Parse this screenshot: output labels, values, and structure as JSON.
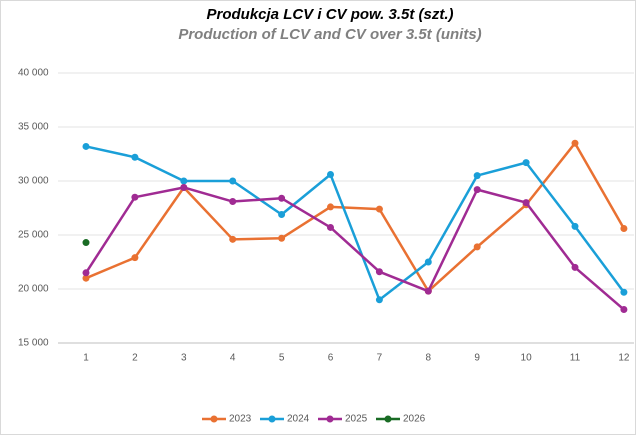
{
  "chart_data": {
    "type": "line",
    "title": "Produkcja LCV i CV pow. 3.5t (szt.)",
    "subtitle": "Production of LCV and CV over 3.5t (units)",
    "categories": [
      "1",
      "2",
      "3",
      "4",
      "5",
      "6",
      "7",
      "8",
      "9",
      "10",
      "11",
      "12"
    ],
    "series": [
      {
        "name": "2023",
        "color": "#e97132",
        "values": [
          21000,
          22900,
          29400,
          24600,
          24700,
          27600,
          27400,
          19800,
          23900,
          27800,
          33500,
          25600
        ]
      },
      {
        "name": "2024",
        "color": "#1a9fd8",
        "values": [
          33200,
          32200,
          30000,
          30000,
          26900,
          30600,
          19000,
          22500,
          30500,
          31700,
          25800,
          19700
        ]
      },
      {
        "name": "2025",
        "color": "#a02b93",
        "values": [
          21500,
          28500,
          29400,
          28100,
          28400,
          25700,
          21600,
          19800,
          29200,
          28000,
          22000,
          18100
        ]
      },
      {
        "name": "2026",
        "color": "#196b24",
        "values": [
          24300,
          null,
          null,
          null,
          null,
          null,
          null,
          null,
          null,
          null,
          null,
          null
        ]
      }
    ],
    "ylim": [
      15000,
      40000
    ],
    "yticks": [
      {
        "value": 15000,
        "label": "15 000"
      },
      {
        "value": 20000,
        "label": "20 000"
      },
      {
        "value": 25000,
        "label": "25 000"
      },
      {
        "value": 30000,
        "label": "30 000"
      },
      {
        "value": 35000,
        "label": "35 000"
      },
      {
        "value": 40000,
        "label": "40 000"
      }
    ],
    "grid": true,
    "legend": "bottom"
  }
}
